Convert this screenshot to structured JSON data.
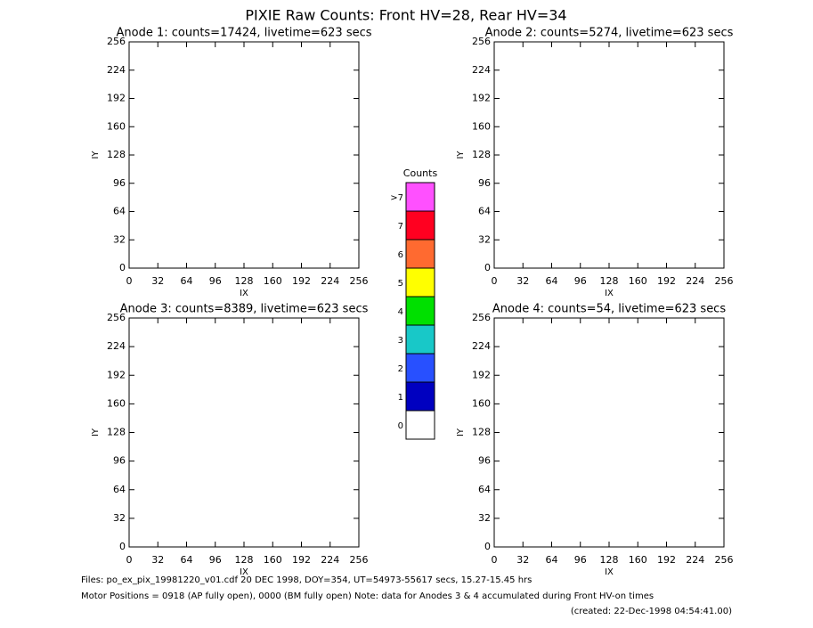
{
  "title": "PIXIE Raw Counts:  Front HV=28, Rear HV=34",
  "chart_data": [
    {
      "type": "scatter",
      "title": "Anode 1: counts=17424, livetime=623 secs",
      "xlabel": "IX",
      "ylabel": "IY",
      "xlim": [
        0,
        256
      ],
      "ylim": [
        0,
        256
      ],
      "xticks": [
        0,
        32,
        64,
        96,
        128,
        160,
        192,
        224,
        256
      ],
      "yticks": [
        0,
        32,
        64,
        96,
        128,
        160,
        192,
        224,
        256
      ]
    },
    {
      "type": "scatter",
      "title": "Anode 2: counts=5274, livetime=623 secs",
      "xlabel": "IX",
      "ylabel": "IY",
      "xlim": [
        0,
        256
      ],
      "ylim": [
        0,
        256
      ],
      "xticks": [
        0,
        32,
        64,
        96,
        128,
        160,
        192,
        224,
        256
      ],
      "yticks": [
        0,
        32,
        64,
        96,
        128,
        160,
        192,
        224,
        256
      ]
    },
    {
      "type": "scatter",
      "title": "Anode 3: counts=8389, livetime=623 secs",
      "xlabel": "IX",
      "ylabel": "IY",
      "xlim": [
        0,
        256
      ],
      "ylim": [
        0,
        256
      ],
      "xticks": [
        0,
        32,
        64,
        96,
        128,
        160,
        192,
        224,
        256
      ],
      "yticks": [
        0,
        32,
        64,
        96,
        128,
        160,
        192,
        224,
        256
      ]
    },
    {
      "type": "scatter",
      "title": "Anode 4: counts=54, livetime=623 secs",
      "xlabel": "IX",
      "ylabel": "IY",
      "xlim": [
        0,
        256
      ],
      "ylim": [
        0,
        256
      ],
      "xticks": [
        0,
        32,
        64,
        96,
        128,
        160,
        192,
        224,
        256
      ],
      "yticks": [
        0,
        32,
        64,
        96,
        128,
        160,
        192,
        224,
        256
      ]
    },
    {
      "type": "colorbar",
      "title": "Counts",
      "categories": [
        "0",
        "1",
        "2",
        "3",
        "4",
        "5",
        "6",
        "7",
        ">7"
      ],
      "colors": [
        "#ffffff",
        "#0000c0",
        "#2850ff",
        "#18c8c8",
        "#00e000",
        "#ffff00",
        "#ff6a30",
        "#ff0020",
        "#ff50ff"
      ]
    }
  ],
  "footer": [
    "Files: po_ex_pix_19981220_v01.cdf   20 DEC 1998, DOY=354, UT=54973-55617 secs, 15.27-15.45 hrs",
    "Motor Positions = 0918 (AP fully open), 0000 (BM fully open)    Note: data for Anodes 3 & 4 accumulated during Front HV-on times",
    "(created: 22-Dec-1998 04:54:41.00)"
  ]
}
